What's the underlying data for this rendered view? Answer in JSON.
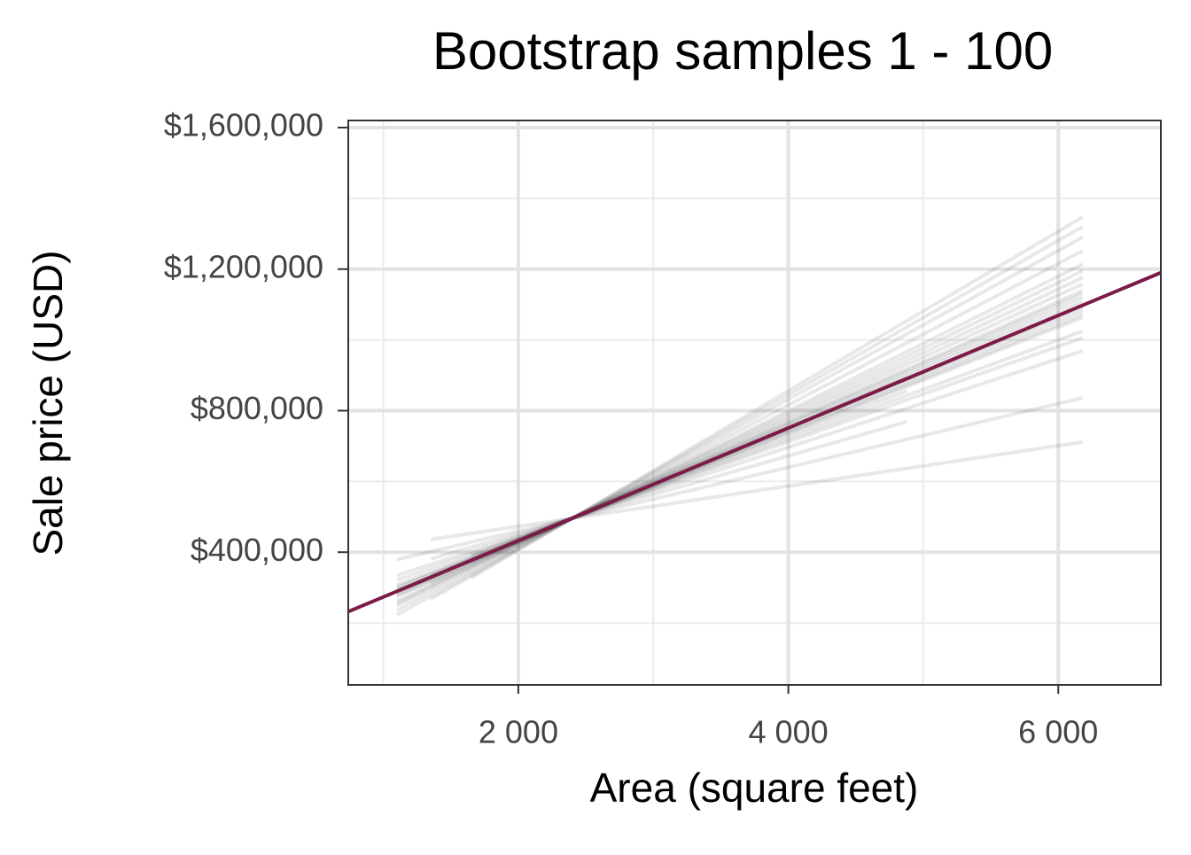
{
  "chart_data": {
    "type": "line",
    "title": "Bootstrap samples 1 - 100",
    "xlabel": "Area (square feet)",
    "ylabel": "Sale price (USD)",
    "xlim": [
      740,
      6760
    ],
    "ylim": [
      25000,
      1620000
    ],
    "xticks": [
      {
        "value": 2000,
        "label": "2 000"
      },
      {
        "value": 4000,
        "label": "4 000"
      },
      {
        "value": 6000,
        "label": "6 000"
      }
    ],
    "yticks": [
      {
        "value": 400000,
        "label": "$400,000"
      },
      {
        "value": 800000,
        "label": "$800,000"
      },
      {
        "value": 1200000,
        "label": "$1,200,000"
      },
      {
        "value": 1600000,
        "label": "$1,600,000"
      }
    ],
    "x_minor_ticks": [
      1000,
      3000,
      5000
    ],
    "y_minor_ticks": [
      200000,
      600000,
      1000000,
      1400000
    ],
    "grid": true,
    "sample_color": "#000000",
    "series": [
      {
        "x": [
          1350,
          6180
        ],
        "values": [
          436000,
          711000
        ]
      },
      {
        "x": [
          1100,
          6180
        ],
        "values": [
          379000,
          836000
        ]
      },
      {
        "x": [
          1350,
          4880
        ],
        "values": [
          381000,
          769000
        ]
      },
      {
        "x": [
          1100,
          6180
        ],
        "values": [
          334000,
          969000
        ]
      },
      {
        "x": [
          1100,
          6180
        ],
        "values": [
          321000,
          1006000
        ]
      },
      {
        "x": [
          1650,
          6180
        ],
        "values": [
          391000,
          1025000
        ]
      },
      {
        "x": [
          1100,
          4880
        ],
        "values": [
          308000,
          856000
        ]
      },
      {
        "x": [
          1100,
          6180
        ],
        "values": [
          301000,
          1063000
        ]
      },
      {
        "x": [
          1100,
          6180
        ],
        "values": [
          298000,
          1071000
        ]
      },
      {
        "x": [
          1350,
          6180
        ],
        "values": [
          333000,
          1082000
        ]
      },
      {
        "x": [
          1100,
          6180
        ],
        "values": [
          291000,
          1093000
        ]
      },
      {
        "x": [
          1100,
          4880
        ],
        "values": [
          288000,
          893000
        ]
      },
      {
        "x": [
          1100,
          6180
        ],
        "values": [
          285000,
          1108000
        ]
      },
      {
        "x": [
          1650,
          6180
        ],
        "values": [
          372000,
          1120000
        ]
      },
      {
        "x": [
          1100,
          6180
        ],
        "values": [
          278000,
          1131000
        ]
      },
      {
        "x": [
          1100,
          6180
        ],
        "values": [
          275000,
          1139000
        ]
      },
      {
        "x": [
          1350,
          6180
        ],
        "values": [
          312000,
          1158000
        ]
      },
      {
        "x": [
          1100,
          6180
        ],
        "values": [
          262000,
          1176000
        ]
      },
      {
        "x": [
          1100,
          6180
        ],
        "values": [
          256000,
          1195000
        ]
      },
      {
        "x": [
          1100,
          6180
        ],
        "values": [
          249000,
          1214000
        ]
      },
      {
        "x": [
          1100,
          6180
        ],
        "values": [
          236000,
          1252000
        ]
      },
      {
        "x": [
          1100,
          6180
        ],
        "values": [
          223000,
          1290000
        ]
      },
      {
        "x": [
          1350,
          6180
        ],
        "values": [
          267000,
          1320000
        ]
      },
      {
        "x": [
          1650,
          6180
        ],
        "values": [
          327000,
          1347000
        ]
      }
    ],
    "fit": {
      "x": [
        740,
        6760
      ],
      "values": [
        232000,
        1190000
      ],
      "color": "#7b1c48"
    }
  }
}
